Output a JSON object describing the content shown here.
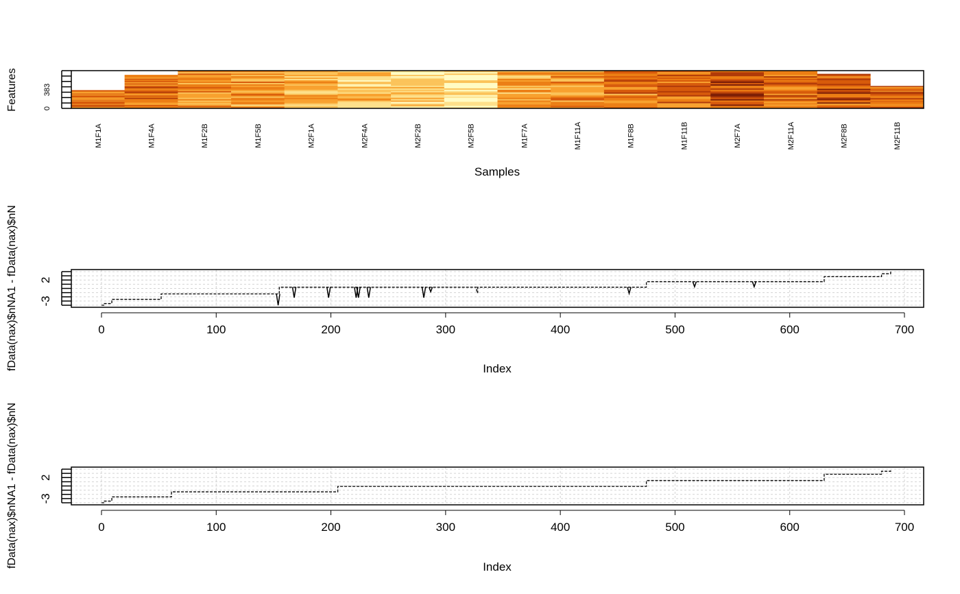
{
  "chart_data": [
    {
      "type": "heatmap",
      "xlabel": "Samples",
      "ylabel": "Features",
      "y_ticks": [
        "0",
        "383"
      ],
      "samples": [
        "M1F1A",
        "M1F4A",
        "M1F2B",
        "M1F5B",
        "M2F1A",
        "M2F4A",
        "M2F2B",
        "M2F5B",
        "M1F7A",
        "M1F11A",
        "M1F8B",
        "M1F11B",
        "M2F7A",
        "M2F11A",
        "M2F8B",
        "M2F11B"
      ],
      "missing_features": [
        395,
        85,
        0,
        0,
        0,
        0,
        0,
        0,
        0,
        0,
        0,
        0,
        0,
        0,
        64,
        310
      ],
      "total_features": 766,
      "intensity_level": [
        0.55,
        0.6,
        0.5,
        0.45,
        0.35,
        0.3,
        0.25,
        0.15,
        0.4,
        0.5,
        0.55,
        0.6,
        0.75,
        0.65,
        0.7,
        0.6
      ],
      "colors": [
        "#fffbc4",
        "#fde08a",
        "#fbc35a",
        "#f8a12e",
        "#ec7e14",
        "#d75a0b",
        "#b03a08",
        "#7d1f06"
      ]
    },
    {
      "type": "line",
      "xlabel": "Index",
      "ylabel": "fData(nax)$nNA1 - fData(nax)$nN",
      "xlim": [
        0,
        690
      ],
      "ylim": [
        -4,
        4
      ],
      "x_ticks": [
        0,
        100,
        200,
        300,
        400,
        500,
        600,
        700
      ],
      "y_ticks": [
        -3,
        2
      ],
      "grid": true,
      "steps": [
        {
          "x": 0,
          "y": -4
        },
        {
          "x": 2,
          "y": -3.6
        },
        {
          "x": 9,
          "y": -2.6
        },
        {
          "x": 52,
          "y": -1.3
        },
        {
          "x": 155,
          "y": 0.3
        },
        {
          "x": 327,
          "y": -1.0
        },
        {
          "x": 328,
          "y": 0.3
        },
        {
          "x": 462,
          "y": 0.3
        },
        {
          "x": 475,
          "y": 1.6
        },
        {
          "x": 630,
          "y": 2.8
        },
        {
          "x": 680,
          "y": 3.5
        },
        {
          "x": 688,
          "y": 4
        }
      ],
      "dips": [
        {
          "x": 154,
          "depth": -4
        },
        {
          "x": 168,
          "depth": -2.2
        },
        {
          "x": 198,
          "depth": -2.2
        },
        {
          "x": 222,
          "depth": -2.2
        },
        {
          "x": 224,
          "depth": -2.2
        },
        {
          "x": 233,
          "depth": -2.2
        },
        {
          "x": 281,
          "depth": -2.2
        },
        {
          "x": 287,
          "depth": -0.8
        },
        {
          "x": 460,
          "depth": -1.2
        },
        {
          "x": 517,
          "depth": 0.4
        },
        {
          "x": 569,
          "depth": 0.4
        }
      ]
    },
    {
      "type": "line",
      "xlabel": "Index",
      "ylabel": "fData(nax)$nNA1 - fData(nax)$nN",
      "xlim": [
        0,
        690
      ],
      "ylim": [
        -4,
        4
      ],
      "x_ticks": [
        0,
        100,
        200,
        300,
        400,
        500,
        600,
        700
      ],
      "y_ticks": [
        -3,
        2
      ],
      "grid": true,
      "steps": [
        {
          "x": 0,
          "y": -4
        },
        {
          "x": 2,
          "y": -3.6
        },
        {
          "x": 9,
          "y": -2.6
        },
        {
          "x": 61,
          "y": -1.4
        },
        {
          "x": 206,
          "y": -0.1
        },
        {
          "x": 475,
          "y": 1.3
        },
        {
          "x": 630,
          "y": 2.8
        },
        {
          "x": 680,
          "y": 3.5
        },
        {
          "x": 688,
          "y": 4
        }
      ],
      "dips": []
    }
  ]
}
